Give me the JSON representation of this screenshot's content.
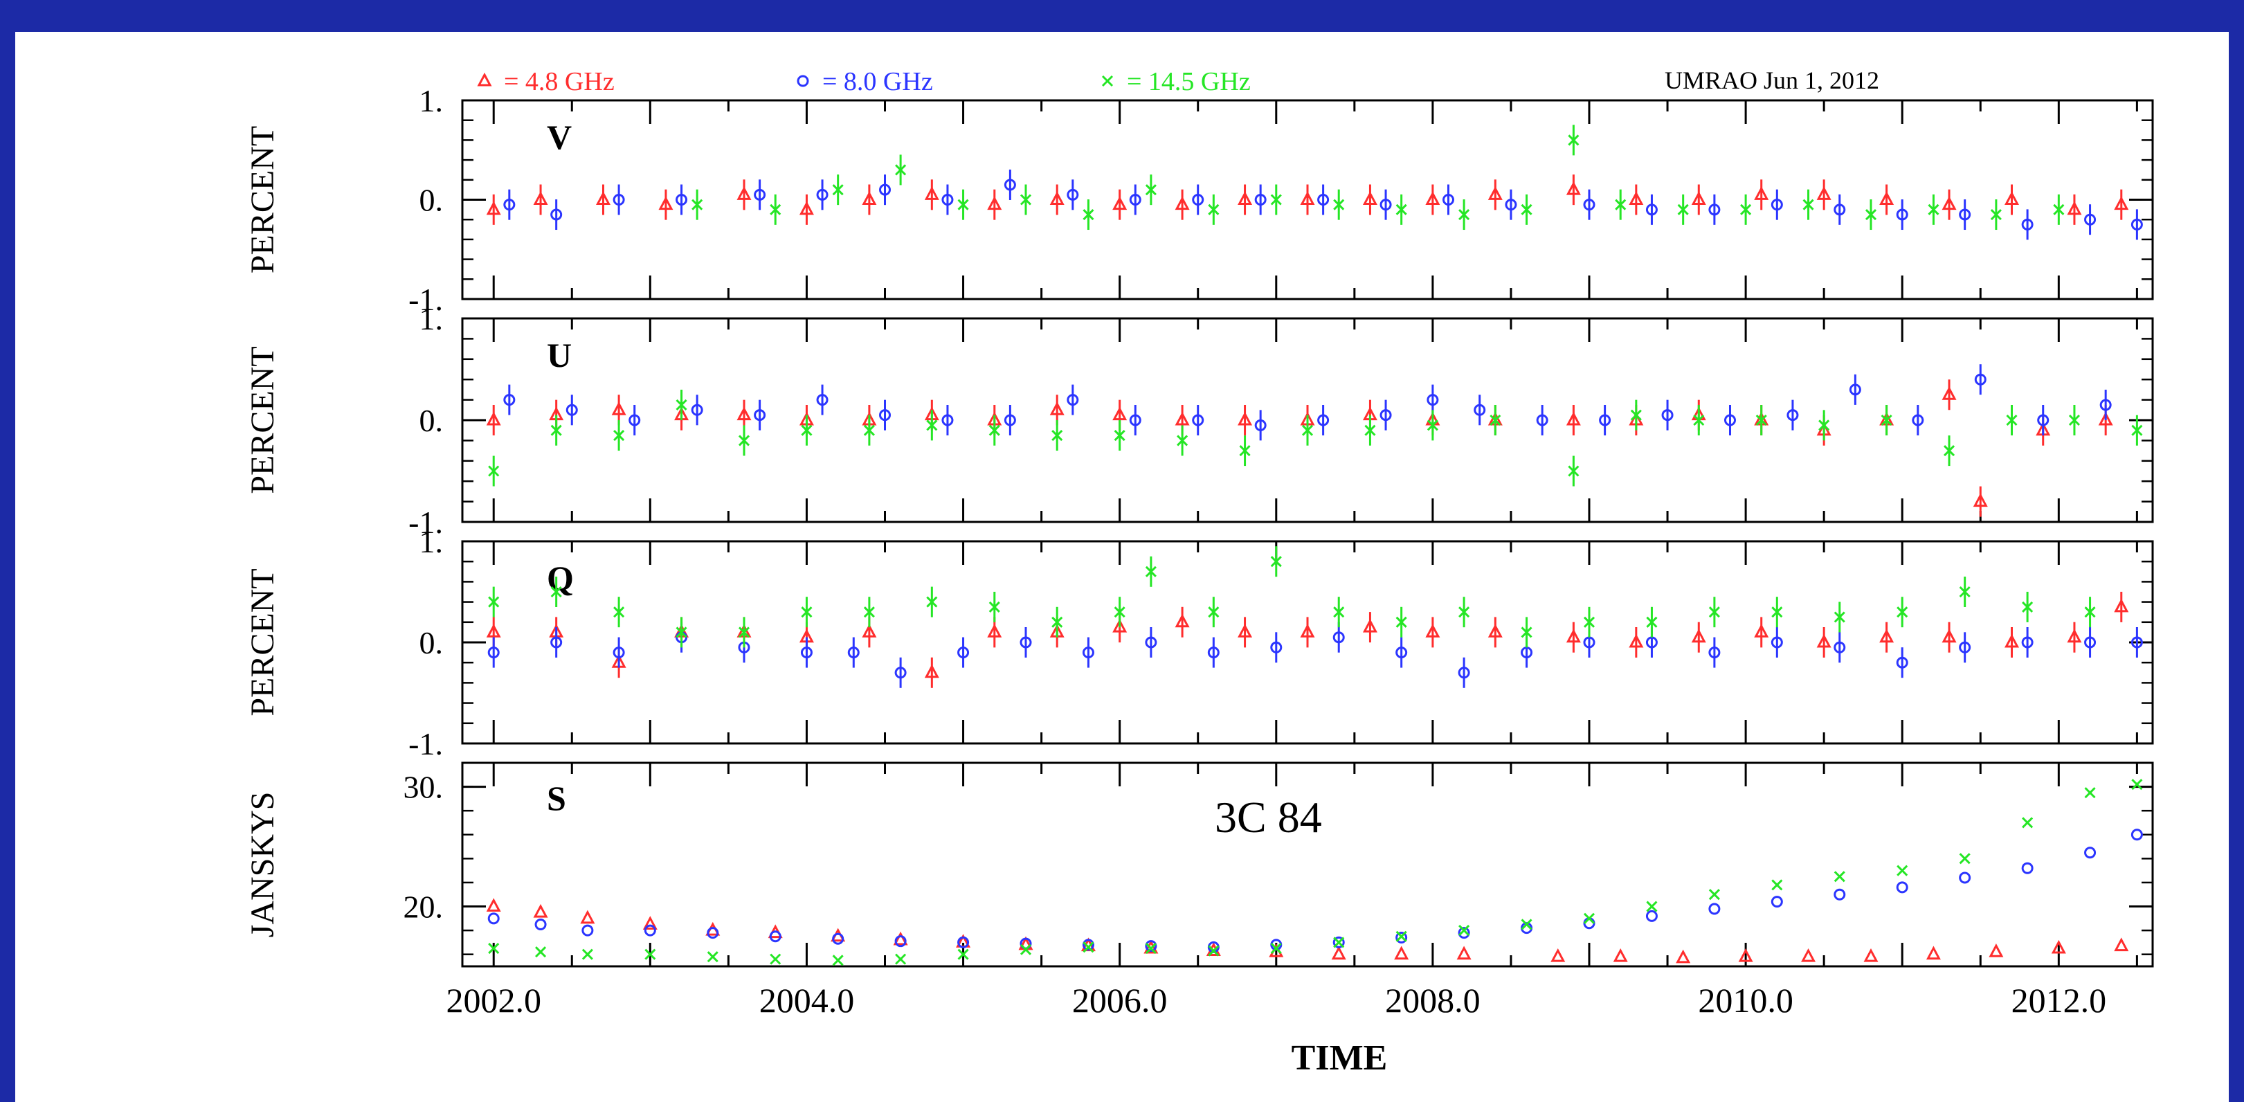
{
  "colors": {
    "background": "#1c2aa6",
    "panel": "#ffffff",
    "s48": "#ff2d2d",
    "s80": "#2b35ff",
    "s145": "#25e625",
    "axis": "#000000"
  },
  "chart_data": {
    "type": "scatter",
    "header": "UMRAO  Jun  1, 2012",
    "source": "3C 84",
    "xlabel": "TIME",
    "xlim": [
      2001.8,
      2012.6
    ],
    "xticks": [
      2002,
      2004,
      2006,
      2008,
      2010,
      2012
    ],
    "xtick_labels": [
      "2002.0",
      "2004.0",
      "2006.0",
      "2008.0",
      "2010.0",
      "2012.0"
    ],
    "legend": [
      {
        "marker": "triangle",
        "text": "= 4.8 GHz",
        "color": "#ff2d2d"
      },
      {
        "marker": "circle",
        "text": "= 8.0 GHz",
        "color": "#2b35ff"
      },
      {
        "marker": "cross",
        "text": "= 14.5 GHz",
        "color": "#25e625"
      }
    ],
    "panels": [
      {
        "id": "V",
        "label": "V",
        "ylabel": "PERCENT",
        "ylim": [
          -1,
          1
        ],
        "yticks": [
          1,
          0,
          -1
        ],
        "ytick_labels": [
          "1.",
          "0.",
          "-1."
        ],
        "series": [
          {
            "name": "4.8 GHz",
            "marker": "triangle",
            "color": "#ff2d2d",
            "x": [
              2002.0,
              2002.3,
              2002.7,
              2003.1,
              2003.6,
              2004.0,
              2004.4,
              2004.8,
              2005.2,
              2005.6,
              2006.0,
              2006.4,
              2006.8,
              2007.2,
              2007.6,
              2008.0,
              2008.4,
              2008.9,
              2009.3,
              2009.7,
              2010.1,
              2010.5,
              2010.9,
              2011.3,
              2011.7,
              2012.1,
              2012.4
            ],
            "y": [
              -0.1,
              0.0,
              0.0,
              -0.05,
              0.05,
              -0.1,
              0.0,
              0.05,
              -0.05,
              0.0,
              -0.05,
              -0.05,
              0.0,
              0.0,
              0.0,
              0.0,
              0.05,
              0.1,
              0.0,
              0.0,
              0.05,
              0.05,
              0.0,
              -0.05,
              0.0,
              -0.1,
              -0.05
            ]
          },
          {
            "name": "8.0 GHz",
            "marker": "circle",
            "color": "#2b35ff",
            "x": [
              2002.1,
              2002.4,
              2002.8,
              2003.2,
              2003.7,
              2004.1,
              2004.5,
              2004.9,
              2005.3,
              2005.7,
              2006.1,
              2006.5,
              2006.9,
              2007.3,
              2007.7,
              2008.1,
              2008.5,
              2009.0,
              2009.4,
              2009.8,
              2010.2,
              2010.6,
              2011.0,
              2011.4,
              2011.8,
              2012.2,
              2012.5
            ],
            "y": [
              -0.05,
              -0.15,
              0.0,
              0.0,
              0.05,
              0.05,
              0.1,
              0.0,
              0.15,
              0.05,
              0.0,
              0.0,
              0.0,
              0.0,
              -0.05,
              0.0,
              -0.05,
              -0.05,
              -0.1,
              -0.1,
              -0.05,
              -0.1,
              -0.15,
              -0.15,
              -0.25,
              -0.2,
              -0.25
            ]
          },
          {
            "name": "14.5 GHz",
            "marker": "cross",
            "color": "#25e625",
            "x": [
              2003.3,
              2003.8,
              2004.2,
              2004.6,
              2005.0,
              2005.4,
              2005.8,
              2006.2,
              2006.6,
              2007.0,
              2007.4,
              2007.8,
              2008.2,
              2008.6,
              2008.9,
              2009.2,
              2009.6,
              2010.0,
              2010.4,
              2010.8,
              2011.2,
              2011.6,
              2012.0
            ],
            "y": [
              -0.05,
              -0.1,
              0.1,
              0.3,
              -0.05,
              0.0,
              -0.15,
              0.1,
              -0.1,
              0.0,
              -0.05,
              -0.1,
              -0.15,
              -0.1,
              0.6,
              -0.05,
              -0.1,
              -0.1,
              -0.05,
              -0.15,
              -0.1,
              -0.15,
              -0.1
            ]
          }
        ]
      },
      {
        "id": "U",
        "label": "U",
        "ylabel": "PERCENT",
        "ylim": [
          -1,
          1
        ],
        "yticks": [
          1,
          0,
          -1
        ],
        "ytick_labels": [
          "1.",
          "0.",
          "-1."
        ],
        "series": [
          {
            "name": "4.8 GHz",
            "marker": "triangle",
            "color": "#ff2d2d",
            "x": [
              2002.0,
              2002.4,
              2002.8,
              2003.2,
              2003.6,
              2004.0,
              2004.4,
              2004.8,
              2005.2,
              2005.6,
              2006.0,
              2006.4,
              2006.8,
              2007.2,
              2007.6,
              2008.0,
              2008.4,
              2008.9,
              2009.3,
              2009.7,
              2010.1,
              2010.5,
              2010.9,
              2011.3,
              2011.5,
              2011.9,
              2012.3
            ],
            "y": [
              0.0,
              0.05,
              0.1,
              0.05,
              0.05,
              0.0,
              0.0,
              0.05,
              0.0,
              0.1,
              0.05,
              0.0,
              0.0,
              0.0,
              0.05,
              0.0,
              0.0,
              0.0,
              0.0,
              0.05,
              0.0,
              -0.1,
              0.0,
              0.25,
              -0.8,
              -0.1,
              0.0
            ]
          },
          {
            "name": "8.0 GHz",
            "marker": "circle",
            "color": "#2b35ff",
            "x": [
              2002.1,
              2002.5,
              2002.9,
              2003.3,
              2003.7,
              2004.1,
              2004.5,
              2004.9,
              2005.3,
              2005.7,
              2006.1,
              2006.5,
              2006.9,
              2007.3,
              2007.7,
              2008.0,
              2008.3,
              2008.7,
              2009.1,
              2009.5,
              2009.9,
              2010.3,
              2010.7,
              2011.1,
              2011.5,
              2011.9,
              2012.3
            ],
            "y": [
              0.2,
              0.1,
              0.0,
              0.1,
              0.05,
              0.2,
              0.05,
              0.0,
              0.0,
              0.2,
              0.0,
              0.0,
              -0.05,
              0.0,
              0.05,
              0.2,
              0.1,
              0.0,
              0.0,
              0.05,
              0.0,
              0.05,
              0.3,
              0.0,
              0.4,
              0.0,
              0.15
            ]
          },
          {
            "name": "14.5 GHz",
            "marker": "cross",
            "color": "#25e625",
            "x": [
              2002.0,
              2002.4,
              2002.8,
              2003.2,
              2003.6,
              2004.0,
              2004.4,
              2004.8,
              2005.2,
              2005.6,
              2006.0,
              2006.4,
              2006.8,
              2007.2,
              2007.6,
              2008.0,
              2008.4,
              2008.9,
              2009.3,
              2009.7,
              2010.1,
              2010.5,
              2010.9,
              2011.3,
              2011.7,
              2012.1,
              2012.5
            ],
            "y": [
              -0.5,
              -0.1,
              -0.15,
              0.15,
              -0.2,
              -0.1,
              -0.1,
              -0.05,
              -0.1,
              -0.15,
              -0.15,
              -0.2,
              -0.3,
              -0.1,
              -0.1,
              -0.05,
              0.0,
              -0.5,
              0.05,
              0.0,
              0.0,
              -0.05,
              0.0,
              -0.3,
              0.0,
              0.0,
              -0.1
            ]
          }
        ]
      },
      {
        "id": "Q",
        "label": "Q",
        "ylabel": "PERCENT",
        "ylim": [
          -1,
          1
        ],
        "yticks": [
          1,
          0,
          -1
        ],
        "ytick_labels": [
          "1.",
          "0.",
          "-1."
        ],
        "series": [
          {
            "name": "4.8 GHz",
            "marker": "triangle",
            "color": "#ff2d2d",
            "x": [
              2002.0,
              2002.4,
              2002.8,
              2003.2,
              2003.6,
              2004.0,
              2004.4,
              2004.8,
              2005.2,
              2005.6,
              2006.0,
              2006.4,
              2006.8,
              2007.2,
              2007.6,
              2008.0,
              2008.4,
              2008.9,
              2009.3,
              2009.7,
              2010.1,
              2010.5,
              2010.9,
              2011.3,
              2011.7,
              2012.1,
              2012.4
            ],
            "y": [
              0.1,
              0.1,
              -0.2,
              0.1,
              0.1,
              0.05,
              0.1,
              -0.3,
              0.1,
              0.1,
              0.15,
              0.2,
              0.1,
              0.1,
              0.15,
              0.1,
              0.1,
              0.05,
              0.0,
              0.05,
              0.1,
              0.0,
              0.05,
              0.05,
              0.0,
              0.05,
              0.35
            ]
          },
          {
            "name": "8.0 GHz",
            "marker": "circle",
            "color": "#2b35ff",
            "x": [
              2002.0,
              2002.4,
              2002.8,
              2003.2,
              2003.6,
              2004.0,
              2004.3,
              2004.6,
              2005.0,
              2005.4,
              2005.8,
              2006.2,
              2006.6,
              2007.0,
              2007.4,
              2007.8,
              2008.2,
              2008.6,
              2009.0,
              2009.4,
              2009.8,
              2010.2,
              2010.6,
              2011.0,
              2011.4,
              2011.8,
              2012.2,
              2012.5
            ],
            "y": [
              -0.1,
              0.0,
              -0.1,
              0.05,
              -0.05,
              -0.1,
              -0.1,
              -0.3,
              -0.1,
              0.0,
              -0.1,
              0.0,
              -0.1,
              -0.05,
              0.05,
              -0.1,
              -0.3,
              -0.1,
              0.0,
              0.0,
              -0.1,
              0.0,
              -0.05,
              -0.2,
              -0.05,
              0.0,
              0.0,
              0.0
            ]
          },
          {
            "name": "14.5 GHz",
            "marker": "cross",
            "color": "#25e625",
            "x": [
              2002.0,
              2002.4,
              2002.8,
              2003.2,
              2003.6,
              2004.0,
              2004.4,
              2004.8,
              2005.2,
              2005.6,
              2006.0,
              2006.2,
              2006.6,
              2007.0,
              2007.4,
              2007.8,
              2008.2,
              2008.6,
              2009.0,
              2009.4,
              2009.8,
              2010.2,
              2010.6,
              2011.0,
              2011.4,
              2011.8,
              2012.2
            ],
            "y": [
              0.4,
              0.5,
              0.3,
              0.1,
              0.1,
              0.3,
              0.3,
              0.4,
              0.35,
              0.2,
              0.3,
              0.7,
              0.3,
              0.8,
              0.3,
              0.2,
              0.3,
              0.1,
              0.2,
              0.2,
              0.3,
              0.3,
              0.25,
              0.3,
              0.5,
              0.35,
              0.3
            ]
          }
        ]
      },
      {
        "id": "S",
        "label": "S",
        "ylabel": "JANSKYS",
        "ylim": [
          15,
          32
        ],
        "yticks": [
          30,
          20
        ],
        "ytick_labels": [
          "30.",
          "20."
        ],
        "series": [
          {
            "name": "4.8 GHz",
            "marker": "triangle",
            "color": "#ff2d2d",
            "x": [
              2002.0,
              2002.3,
              2002.6,
              2003.0,
              2003.4,
              2003.8,
              2004.2,
              2004.6,
              2005.0,
              2005.4,
              2005.8,
              2006.2,
              2006.6,
              2007.0,
              2007.4,
              2007.8,
              2008.2,
              2008.8,
              2009.2,
              2009.6,
              2010.0,
              2010.4,
              2010.8,
              2011.2,
              2011.6,
              2012.0,
              2012.4
            ],
            "y": [
              20,
              19.5,
              19,
              18.5,
              18,
              17.8,
              17.5,
              17.2,
              17,
              16.8,
              16.7,
              16.5,
              16.3,
              16.2,
              16.0,
              16.0,
              16.0,
              15.8,
              15.8,
              15.7,
              15.8,
              15.8,
              15.8,
              16.0,
              16.2,
              16.5,
              16.7
            ]
          },
          {
            "name": "8.0 GHz",
            "marker": "circle",
            "color": "#2b35ff",
            "x": [
              2002.0,
              2002.3,
              2002.6,
              2003.0,
              2003.4,
              2003.8,
              2004.2,
              2004.6,
              2005.0,
              2005.4,
              2005.8,
              2006.2,
              2006.6,
              2007.0,
              2007.4,
              2007.8,
              2008.2,
              2008.6,
              2009.0,
              2009.4,
              2009.8,
              2010.2,
              2010.6,
              2011.0,
              2011.4,
              2011.8,
              2012.2,
              2012.5
            ],
            "y": [
              19,
              18.5,
              18,
              18,
              17.8,
              17.5,
              17.3,
              17.1,
              17,
              16.9,
              16.8,
              16.7,
              16.6,
              16.8,
              17.0,
              17.4,
              17.8,
              18.2,
              18.6,
              19.2,
              19.8,
              20.4,
              21.0,
              21.6,
              22.4,
              23.2,
              24.5,
              26.0
            ]
          },
          {
            "name": "14.5 GHz",
            "marker": "cross",
            "color": "#25e625",
            "x": [
              2002.0,
              2002.3,
              2002.6,
              2003.0,
              2003.4,
              2003.8,
              2004.2,
              2004.6,
              2005.0,
              2005.4,
              2005.8,
              2006.2,
              2006.6,
              2007.0,
              2007.4,
              2007.8,
              2008.2,
              2008.6,
              2009.0,
              2009.4,
              2009.8,
              2010.2,
              2010.6,
              2011.0,
              2011.4,
              2011.8,
              2012.2,
              2012.5
            ],
            "y": [
              16.5,
              16.2,
              16.0,
              16.0,
              15.8,
              15.6,
              15.5,
              15.6,
              16.0,
              16.4,
              16.6,
              16.5,
              16.3,
              16.5,
              17.0,
              17.5,
              18.0,
              18.5,
              19.0,
              20.0,
              21.0,
              21.8,
              22.5,
              23.0,
              24.0,
              27.0,
              29.5,
              30.2
            ]
          }
        ]
      }
    ]
  }
}
